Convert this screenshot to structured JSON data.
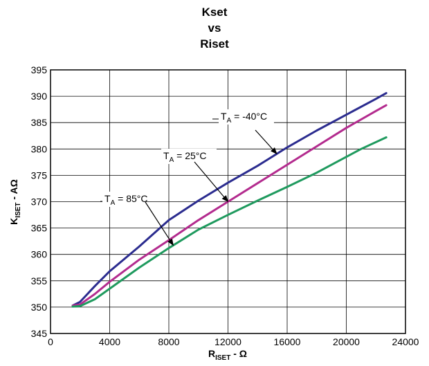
{
  "chart_data": {
    "type": "line",
    "title_lines": [
      "Kset",
      "vs",
      "Riset"
    ],
    "xlabel": {
      "main": "R",
      "sub": "ISET",
      "rest": " - Ω"
    },
    "ylabel": {
      "main": "K",
      "sub": "ISET",
      "rest": " - AΩ"
    },
    "xlim": [
      0,
      24000
    ],
    "ylim": [
      345,
      395
    ],
    "xticks": [
      0,
      4000,
      8000,
      12000,
      16000,
      20000,
      24000
    ],
    "yticks": [
      345,
      350,
      355,
      360,
      365,
      370,
      375,
      380,
      385,
      390,
      395
    ],
    "grid": true,
    "series": [
      {
        "name": "T_A = -40°C",
        "color": "#2b2c8f",
        "x": [
          1500,
          2000,
          3000,
          4000,
          6000,
          8000,
          10000,
          12000,
          14000,
          16000,
          18000,
          20000,
          22000,
          22700
        ],
        "y": [
          350.3,
          351.0,
          354.0,
          356.8,
          361.5,
          366.5,
          370.2,
          373.6,
          376.8,
          380.3,
          383.5,
          386.5,
          389.5,
          390.6
        ]
      },
      {
        "name": "T_A = 25°C",
        "color": "#b32b8e",
        "x": [
          1500,
          2000,
          3000,
          4000,
          6000,
          8000,
          10000,
          12000,
          14000,
          16000,
          18000,
          20000,
          22000,
          22700
        ],
        "y": [
          350.3,
          350.5,
          352.5,
          354.8,
          359.0,
          362.7,
          366.5,
          370.0,
          373.5,
          377.0,
          380.5,
          384.0,
          387.2,
          388.3
        ]
      },
      {
        "name": "T_A = 85°C",
        "color": "#1f9a5e",
        "x": [
          1500,
          2000,
          3000,
          4000,
          6000,
          8000,
          10000,
          12000,
          14000,
          16000,
          18000,
          20000,
          21000,
          22700
        ],
        "y": [
          350.1,
          350.2,
          351.5,
          353.5,
          357.5,
          361.2,
          364.7,
          367.5,
          370.2,
          372.8,
          375.5,
          378.5,
          380.0,
          382.2
        ]
      }
    ],
    "annotations": [
      {
        "main": "T",
        "sub": "A",
        "rest": " = -40°C",
        "series": 0
      },
      {
        "main": "T",
        "sub": "A",
        "rest": " = 25°C",
        "series": 1
      },
      {
        "main": "T",
        "sub": "A",
        "rest": " = 85°C",
        "series": 2
      }
    ]
  }
}
